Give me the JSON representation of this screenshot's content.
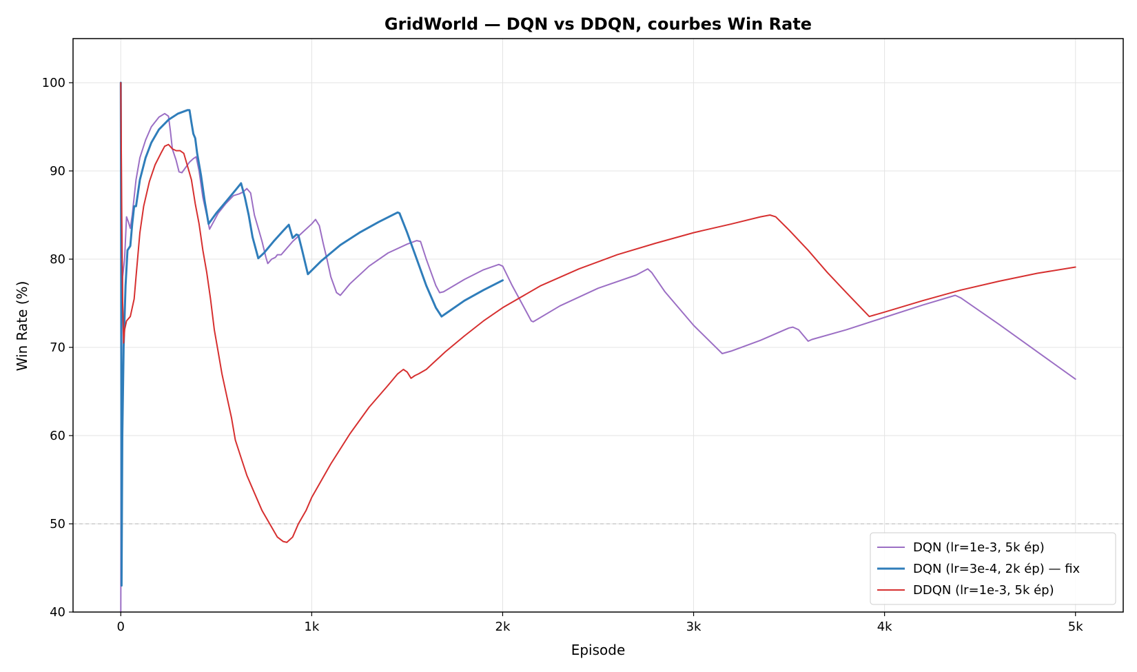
{
  "chart_data": {
    "type": "line",
    "title": "GridWorld — DQN vs DDQN, courbes Win Rate",
    "xlabel": "Episode",
    "ylabel": "Win Rate (%)",
    "xlim": [
      -250,
      5250
    ],
    "ylim": [
      40,
      105
    ],
    "xticks": [
      {
        "value": 0,
        "label": "0"
      },
      {
        "value": 1000,
        "label": "1k"
      },
      {
        "value": 2000,
        "label": "2k"
      },
      {
        "value": 3000,
        "label": "3k"
      },
      {
        "value": 4000,
        "label": "4k"
      },
      {
        "value": 5000,
        "label": "5k"
      }
    ],
    "yticks": [
      {
        "value": 40,
        "label": "40"
      },
      {
        "value": 50,
        "label": "50"
      },
      {
        "value": 60,
        "label": "60"
      },
      {
        "value": 70,
        "label": "70"
      },
      {
        "value": 80,
        "label": "80"
      },
      {
        "value": 90,
        "label": "90"
      },
      {
        "value": 100,
        "label": "100"
      }
    ],
    "grid": true,
    "reference_line": {
      "y": 50,
      "color": "#b0b0b0",
      "style": "dashed"
    },
    "legend_position": "bottom-right",
    "series": [
      {
        "name": "DQN (lr=1e-3, 5k ép)",
        "color": "#9b6ec4",
        "width": 2,
        "points": [
          [
            0,
            40
          ],
          [
            2,
            60
          ],
          [
            5,
            72
          ],
          [
            10,
            78
          ],
          [
            20,
            80
          ],
          [
            30,
            84.8
          ],
          [
            40,
            84.2
          ],
          [
            50,
            83.5
          ],
          [
            60,
            85
          ],
          [
            80,
            89
          ],
          [
            100,
            91.5
          ],
          [
            130,
            93.5
          ],
          [
            160,
            95
          ],
          [
            200,
            96.1
          ],
          [
            230,
            96.5
          ],
          [
            250,
            96.2
          ],
          [
            260,
            94.5
          ],
          [
            270,
            92.5
          ],
          [
            290,
            91.2
          ],
          [
            305,
            89.9
          ],
          [
            320,
            89.8
          ],
          [
            340,
            90.4
          ],
          [
            360,
            91
          ],
          [
            380,
            91.4
          ],
          [
            395,
            91.6
          ],
          [
            410,
            90
          ],
          [
            430,
            87
          ],
          [
            450,
            85
          ],
          [
            465,
            83.4
          ],
          [
            480,
            84
          ],
          [
            510,
            85.2
          ],
          [
            550,
            86.3
          ],
          [
            590,
            87.2
          ],
          [
            620,
            87.4
          ],
          [
            640,
            87.6
          ],
          [
            660,
            88
          ],
          [
            680,
            87.5
          ],
          [
            700,
            85
          ],
          [
            720,
            83.5
          ],
          [
            740,
            82
          ],
          [
            760,
            80.2
          ],
          [
            770,
            79.5
          ],
          [
            790,
            80
          ],
          [
            810,
            80.2
          ],
          [
            820,
            80.5
          ],
          [
            840,
            80.5
          ],
          [
            860,
            81
          ],
          [
            900,
            82
          ],
          [
            950,
            83
          ],
          [
            1000,
            84
          ],
          [
            1020,
            84.5
          ],
          [
            1040,
            83.8
          ],
          [
            1060,
            81.8
          ],
          [
            1080,
            80
          ],
          [
            1100,
            78
          ],
          [
            1130,
            76.2
          ],
          [
            1150,
            75.9
          ],
          [
            1200,
            77.2
          ],
          [
            1300,
            79.2
          ],
          [
            1400,
            80.7
          ],
          [
            1500,
            81.7
          ],
          [
            1550,
            82.1
          ],
          [
            1570,
            82
          ],
          [
            1600,
            80
          ],
          [
            1650,
            77
          ],
          [
            1670,
            76.2
          ],
          [
            1690,
            76.3
          ],
          [
            1800,
            77.7
          ],
          [
            1900,
            78.8
          ],
          [
            1980,
            79.4
          ],
          [
            2000,
            79.2
          ],
          [
            2050,
            77
          ],
          [
            2100,
            75
          ],
          [
            2150,
            73
          ],
          [
            2160,
            72.9
          ],
          [
            2300,
            74.7
          ],
          [
            2500,
            76.7
          ],
          [
            2700,
            78.2
          ],
          [
            2760,
            78.9
          ],
          [
            2780,
            78.5
          ],
          [
            2850,
            76.3
          ],
          [
            3000,
            72.5
          ],
          [
            3150,
            69.3
          ],
          [
            3200,
            69.6
          ],
          [
            3350,
            70.8
          ],
          [
            3500,
            72.2
          ],
          [
            3520,
            72.3
          ],
          [
            3550,
            72
          ],
          [
            3600,
            70.7
          ],
          [
            3620,
            70.9
          ],
          [
            3800,
            72
          ],
          [
            4000,
            73.4
          ],
          [
            4200,
            74.8
          ],
          [
            4370,
            75.9
          ],
          [
            4400,
            75.6
          ],
          [
            4600,
            72.6
          ],
          [
            4800,
            69.5
          ],
          [
            5000,
            66.4
          ]
        ]
      },
      {
        "name": "DQN (lr=3e-4, 2k ép) — fix",
        "color": "#2f7dba",
        "width": 3,
        "points": [
          [
            0,
            100
          ],
          [
            2,
            80
          ],
          [
            4,
            43
          ],
          [
            8,
            60
          ],
          [
            15,
            70
          ],
          [
            25,
            77
          ],
          [
            35,
            81
          ],
          [
            50,
            81.5
          ],
          [
            60,
            84
          ],
          [
            70,
            86
          ],
          [
            80,
            86
          ],
          [
            90,
            87.5
          ],
          [
            100,
            89
          ],
          [
            130,
            91.5
          ],
          [
            160,
            93.2
          ],
          [
            200,
            94.7
          ],
          [
            250,
            95.8
          ],
          [
            300,
            96.5
          ],
          [
            350,
            96.9
          ],
          [
            360,
            96.9
          ],
          [
            370,
            95.5
          ],
          [
            380,
            94.2
          ],
          [
            390,
            93.7
          ],
          [
            400,
            92
          ],
          [
            420,
            89.5
          ],
          [
            440,
            86.5
          ],
          [
            460,
            84
          ],
          [
            500,
            85.2
          ],
          [
            550,
            86.5
          ],
          [
            600,
            87.8
          ],
          [
            630,
            88.6
          ],
          [
            650,
            87
          ],
          [
            670,
            85
          ],
          [
            690,
            82.5
          ],
          [
            720,
            80.1
          ],
          [
            750,
            80.7
          ],
          [
            800,
            82
          ],
          [
            850,
            83.2
          ],
          [
            880,
            83.9
          ],
          [
            900,
            82.4
          ],
          [
            920,
            82.8
          ],
          [
            930,
            82.7
          ],
          [
            950,
            81
          ],
          [
            980,
            78.3
          ],
          [
            1050,
            79.8
          ],
          [
            1150,
            81.6
          ],
          [
            1250,
            83
          ],
          [
            1350,
            84.2
          ],
          [
            1450,
            85.3
          ],
          [
            1460,
            85.2
          ],
          [
            1500,
            83
          ],
          [
            1550,
            80
          ],
          [
            1600,
            77
          ],
          [
            1650,
            74.5
          ],
          [
            1680,
            73.5
          ],
          [
            1700,
            73.8
          ],
          [
            1800,
            75.3
          ],
          [
            1900,
            76.5
          ],
          [
            2000,
            77.6
          ]
        ]
      },
      {
        "name": "DDQN (lr=1e-3, 5k ép)",
        "color": "#d62f2f",
        "width": 2,
        "points": [
          [
            0,
            100
          ],
          [
            5,
            85
          ],
          [
            10,
            75
          ],
          [
            15,
            70.5
          ],
          [
            20,
            72
          ],
          [
            30,
            73
          ],
          [
            50,
            73.5
          ],
          [
            70,
            75.5
          ],
          [
            80,
            78
          ],
          [
            90,
            80.5
          ],
          [
            100,
            83
          ],
          [
            120,
            86
          ],
          [
            150,
            88.8
          ],
          [
            180,
            90.7
          ],
          [
            210,
            92
          ],
          [
            230,
            92.8
          ],
          [
            250,
            93
          ],
          [
            270,
            92.5
          ],
          [
            290,
            92.3
          ],
          [
            310,
            92.3
          ],
          [
            330,
            92
          ],
          [
            350,
            90.5
          ],
          [
            370,
            89
          ],
          [
            390,
            86.3
          ],
          [
            410,
            84
          ],
          [
            430,
            81
          ],
          [
            450,
            78.5
          ],
          [
            470,
            75.5
          ],
          [
            490,
            72
          ],
          [
            510,
            69.5
          ],
          [
            530,
            67
          ],
          [
            560,
            64
          ],
          [
            580,
            62
          ],
          [
            600,
            59.5
          ],
          [
            630,
            57.5
          ],
          [
            660,
            55.5
          ],
          [
            700,
            53.5
          ],
          [
            740,
            51.5
          ],
          [
            780,
            50
          ],
          [
            820,
            48.5
          ],
          [
            850,
            48
          ],
          [
            870,
            47.9
          ],
          [
            900,
            48.5
          ],
          [
            930,
            50
          ],
          [
            970,
            51.5
          ],
          [
            1000,
            53
          ],
          [
            1100,
            56.8
          ],
          [
            1200,
            60.2
          ],
          [
            1300,
            63.2
          ],
          [
            1400,
            65.7
          ],
          [
            1450,
            67
          ],
          [
            1480,
            67.5
          ],
          [
            1500,
            67.2
          ],
          [
            1520,
            66.5
          ],
          [
            1540,
            66.8
          ],
          [
            1560,
            67
          ],
          [
            1600,
            67.5
          ],
          [
            1700,
            69.5
          ],
          [
            1800,
            71.3
          ],
          [
            1900,
            73
          ],
          [
            2000,
            74.5
          ],
          [
            2200,
            77
          ],
          [
            2400,
            78.9
          ],
          [
            2600,
            80.5
          ],
          [
            2800,
            81.8
          ],
          [
            3000,
            83
          ],
          [
            3200,
            84
          ],
          [
            3350,
            84.8
          ],
          [
            3400,
            85
          ],
          [
            3430,
            84.8
          ],
          [
            3500,
            83.3
          ],
          [
            3600,
            81
          ],
          [
            3700,
            78.5
          ],
          [
            3800,
            76.2
          ],
          [
            3920,
            73.5
          ],
          [
            4000,
            74
          ],
          [
            4200,
            75.3
          ],
          [
            4400,
            76.5
          ],
          [
            4600,
            77.5
          ],
          [
            4800,
            78.4
          ],
          [
            5000,
            79.1
          ]
        ]
      }
    ]
  }
}
